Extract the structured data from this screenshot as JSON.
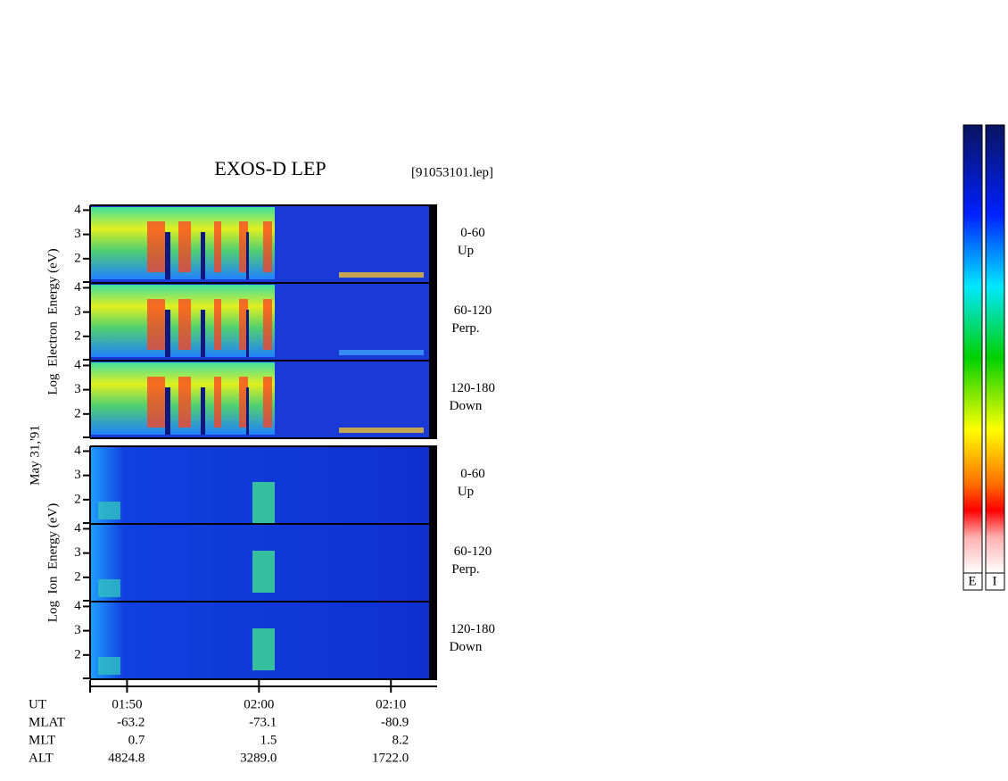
{
  "chart_data": {
    "type": "spectrogram",
    "title": "EXOS-D LEP",
    "subtitle": "[91053101.lep]",
    "date_label": "May 31,'91",
    "xlim": [
      107.2,
      133.5
    ],
    "xticks": [
      {
        "value": 110,
        "label": "01:50"
      },
      {
        "value": 120,
        "label": "02:00"
      },
      {
        "value": 130,
        "label": "02:10"
      }
    ],
    "ylim": [
      1,
      4.2
    ],
    "yticks": [
      2,
      3,
      4
    ],
    "groups": [
      {
        "ylabel": "Log  Electron  Energy (eV)",
        "panels": [
          {
            "range": "0-60",
            "direction": "Up"
          },
          {
            "range": "60-120",
            "direction": "Perp."
          },
          {
            "range": "120-180",
            "direction": "Down"
          }
        ]
      },
      {
        "ylabel": "Log  Ion  Energy (eV)",
        "panels": [
          {
            "range": "0-60",
            "direction": "Up"
          },
          {
            "range": "60-120",
            "direction": "Perp."
          },
          {
            "range": "120-180",
            "direction": "Down"
          }
        ]
      }
    ],
    "ephemeris": {
      "row_labels": [
        "UT",
        "MLAT",
        "MLT",
        "ALT"
      ],
      "rows": [
        [
          "-63.2",
          "-73.1",
          "-80.9"
        ],
        [
          "0.7",
          "1.5",
          "8.2"
        ],
        [
          "4824.8",
          "3289.0",
          "1722.0"
        ]
      ]
    },
    "colorbar_labels": [
      "E",
      "I"
    ]
  }
}
